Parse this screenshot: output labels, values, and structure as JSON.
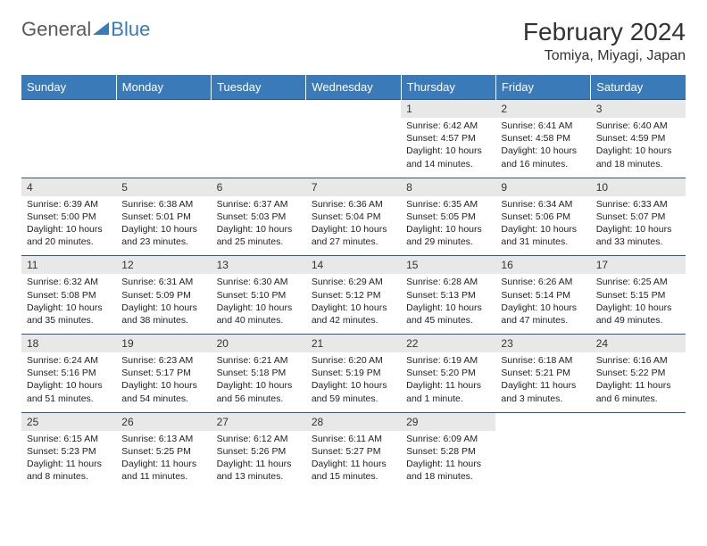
{
  "logo": {
    "text_a": "General",
    "text_b": "Blue"
  },
  "title": "February 2024",
  "location": "Tomiya, Miyagi, Japan",
  "colors": {
    "header_bg": "#3b7ab8",
    "header_text": "#ffffff",
    "daynum_bg": "#e8e8e8",
    "border": "#2b5a8a",
    "logo_gray": "#5a5a5a",
    "logo_blue": "#3b7ab8"
  },
  "day_names": [
    "Sunday",
    "Monday",
    "Tuesday",
    "Wednesday",
    "Thursday",
    "Friday",
    "Saturday"
  ],
  "weeks": [
    [
      null,
      null,
      null,
      null,
      {
        "n": "1",
        "sr": "6:42 AM",
        "ss": "4:57 PM",
        "dl": "10 hours and 14 minutes."
      },
      {
        "n": "2",
        "sr": "6:41 AM",
        "ss": "4:58 PM",
        "dl": "10 hours and 16 minutes."
      },
      {
        "n": "3",
        "sr": "6:40 AM",
        "ss": "4:59 PM",
        "dl": "10 hours and 18 minutes."
      }
    ],
    [
      {
        "n": "4",
        "sr": "6:39 AM",
        "ss": "5:00 PM",
        "dl": "10 hours and 20 minutes."
      },
      {
        "n": "5",
        "sr": "6:38 AM",
        "ss": "5:01 PM",
        "dl": "10 hours and 23 minutes."
      },
      {
        "n": "6",
        "sr": "6:37 AM",
        "ss": "5:03 PM",
        "dl": "10 hours and 25 minutes."
      },
      {
        "n": "7",
        "sr": "6:36 AM",
        "ss": "5:04 PM",
        "dl": "10 hours and 27 minutes."
      },
      {
        "n": "8",
        "sr": "6:35 AM",
        "ss": "5:05 PM",
        "dl": "10 hours and 29 minutes."
      },
      {
        "n": "9",
        "sr": "6:34 AM",
        "ss": "5:06 PM",
        "dl": "10 hours and 31 minutes."
      },
      {
        "n": "10",
        "sr": "6:33 AM",
        "ss": "5:07 PM",
        "dl": "10 hours and 33 minutes."
      }
    ],
    [
      {
        "n": "11",
        "sr": "6:32 AM",
        "ss": "5:08 PM",
        "dl": "10 hours and 35 minutes."
      },
      {
        "n": "12",
        "sr": "6:31 AM",
        "ss": "5:09 PM",
        "dl": "10 hours and 38 minutes."
      },
      {
        "n": "13",
        "sr": "6:30 AM",
        "ss": "5:10 PM",
        "dl": "10 hours and 40 minutes."
      },
      {
        "n": "14",
        "sr": "6:29 AM",
        "ss": "5:12 PM",
        "dl": "10 hours and 42 minutes."
      },
      {
        "n": "15",
        "sr": "6:28 AM",
        "ss": "5:13 PM",
        "dl": "10 hours and 45 minutes."
      },
      {
        "n": "16",
        "sr": "6:26 AM",
        "ss": "5:14 PM",
        "dl": "10 hours and 47 minutes."
      },
      {
        "n": "17",
        "sr": "6:25 AM",
        "ss": "5:15 PM",
        "dl": "10 hours and 49 minutes."
      }
    ],
    [
      {
        "n": "18",
        "sr": "6:24 AM",
        "ss": "5:16 PM",
        "dl": "10 hours and 51 minutes."
      },
      {
        "n": "19",
        "sr": "6:23 AM",
        "ss": "5:17 PM",
        "dl": "10 hours and 54 minutes."
      },
      {
        "n": "20",
        "sr": "6:21 AM",
        "ss": "5:18 PM",
        "dl": "10 hours and 56 minutes."
      },
      {
        "n": "21",
        "sr": "6:20 AM",
        "ss": "5:19 PM",
        "dl": "10 hours and 59 minutes."
      },
      {
        "n": "22",
        "sr": "6:19 AM",
        "ss": "5:20 PM",
        "dl": "11 hours and 1 minute."
      },
      {
        "n": "23",
        "sr": "6:18 AM",
        "ss": "5:21 PM",
        "dl": "11 hours and 3 minutes."
      },
      {
        "n": "24",
        "sr": "6:16 AM",
        "ss": "5:22 PM",
        "dl": "11 hours and 6 minutes."
      }
    ],
    [
      {
        "n": "25",
        "sr": "6:15 AM",
        "ss": "5:23 PM",
        "dl": "11 hours and 8 minutes."
      },
      {
        "n": "26",
        "sr": "6:13 AM",
        "ss": "5:25 PM",
        "dl": "11 hours and 11 minutes."
      },
      {
        "n": "27",
        "sr": "6:12 AM",
        "ss": "5:26 PM",
        "dl": "11 hours and 13 minutes."
      },
      {
        "n": "28",
        "sr": "6:11 AM",
        "ss": "5:27 PM",
        "dl": "11 hours and 15 minutes."
      },
      {
        "n": "29",
        "sr": "6:09 AM",
        "ss": "5:28 PM",
        "dl": "11 hours and 18 minutes."
      },
      null,
      null
    ]
  ],
  "labels": {
    "sunrise": "Sunrise:",
    "sunset": "Sunset:",
    "daylight": "Daylight:"
  }
}
